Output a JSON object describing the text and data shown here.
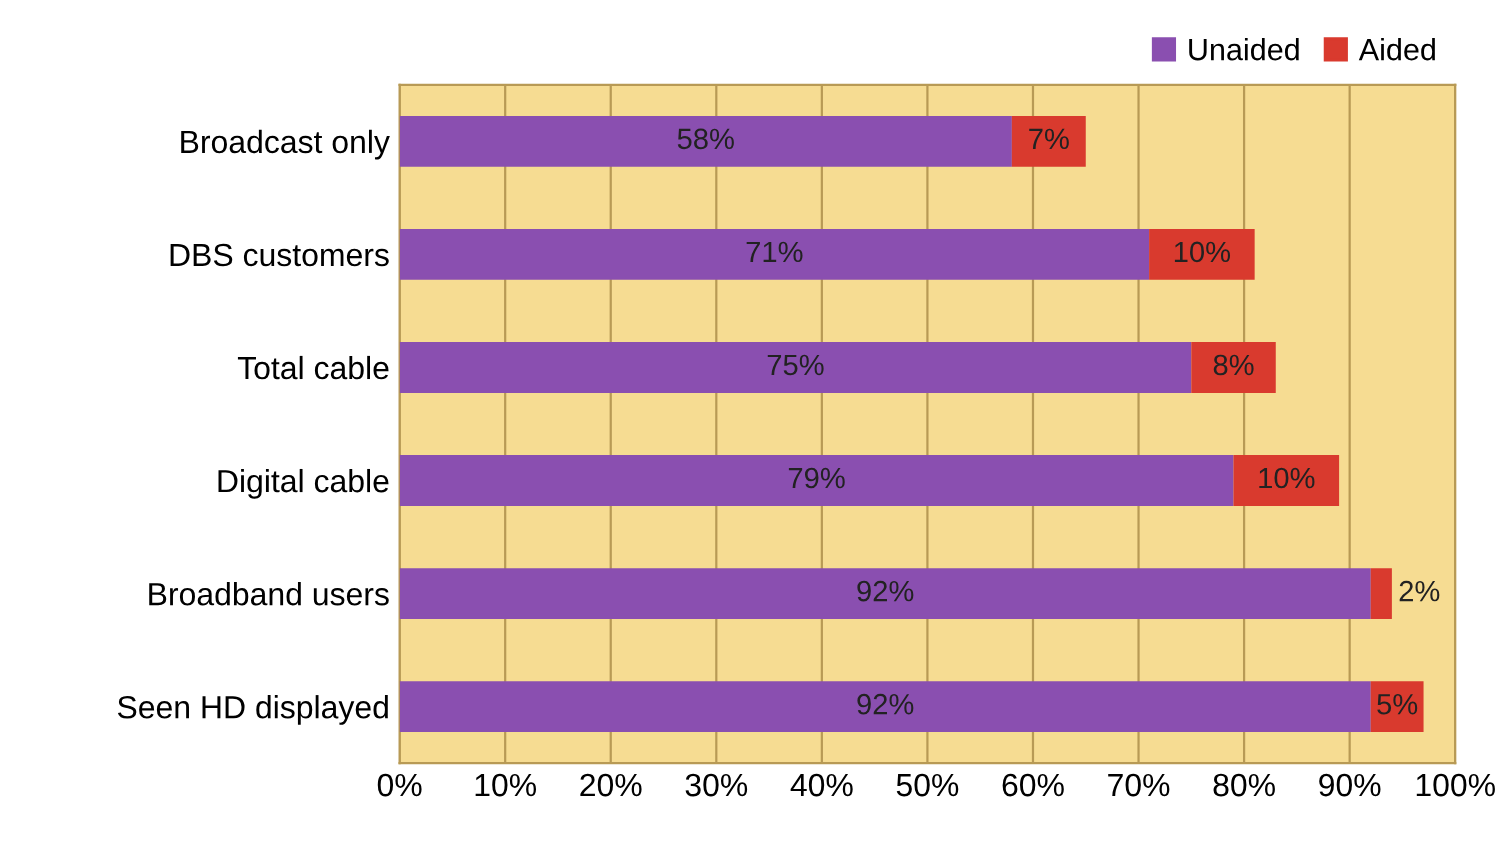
{
  "chart_data": {
    "type": "bar",
    "orientation": "horizontal",
    "stacked": true,
    "categories": [
      "Broadcast only",
      "DBS customers",
      "Total cable",
      "Digital cable",
      "Broadband users",
      "Seen HD displayed"
    ],
    "series": [
      {
        "name": "Unaided",
        "color": "#8a4fb0",
        "values": [
          58,
          71,
          75,
          79,
          92,
          92
        ],
        "value_labels": [
          "58%",
          "71%",
          "75%",
          "79%",
          "92%",
          "92%"
        ]
      },
      {
        "name": "Aided",
        "color": "#d93a2e",
        "values": [
          7,
          10,
          8,
          10,
          2,
          5
        ],
        "value_labels": [
          "7%",
          "10%",
          "8%",
          "10%",
          "2%",
          "5%"
        ]
      }
    ],
    "xlim": [
      0,
      100
    ],
    "xticks": [
      {
        "value": 0,
        "label": "0%"
      },
      {
        "value": 10,
        "label": "10%"
      },
      {
        "value": 20,
        "label": "20%"
      },
      {
        "value": 30,
        "label": "30%"
      },
      {
        "value": 40,
        "label": "40%"
      },
      {
        "value": 50,
        "label": "50%"
      },
      {
        "value": 60,
        "label": "60%"
      },
      {
        "value": 70,
        "label": "70%"
      },
      {
        "value": 80,
        "label": "80%"
      },
      {
        "value": 90,
        "label": "90%"
      },
      {
        "value": 100,
        "label": "100%"
      }
    ],
    "grid": "x",
    "legend": "top right"
  }
}
